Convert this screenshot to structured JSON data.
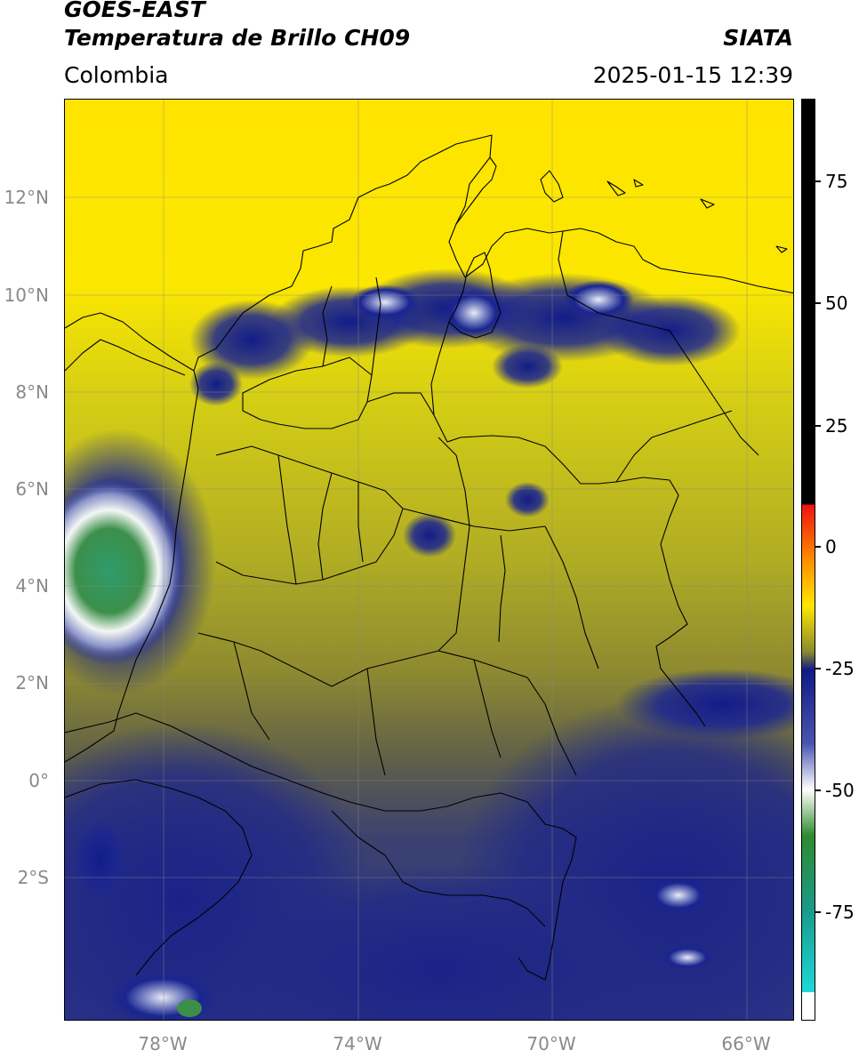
{
  "header": {
    "satellite": "GOES-EAST",
    "product": "Temperatura de Brillo CH09",
    "organization": "SIATA",
    "region": "Colombia",
    "timestamp": "2025-01-15 12:39"
  },
  "map": {
    "lat_ticks": [
      "12°N",
      "10°N",
      "8°N",
      "6°N",
      "4°N",
      "2°N",
      "0°",
      "2°S"
    ],
    "lon_ticks": [
      "78°W",
      "74°W",
      "70°W",
      "66°W"
    ],
    "extent": {
      "lon_min": -80,
      "lon_max": -65,
      "lat_min": -5,
      "lat_max": 14
    },
    "gridlines": true
  },
  "colorbar": {
    "ticks": [
      "75",
      "50",
      "25",
      "0",
      "-25",
      "-50",
      "-75"
    ],
    "colors": {
      "warm_black": "#000000",
      "red": "#ee1111",
      "orange": "#ff8c00",
      "yellow": "#ffe600",
      "olive": "#8a8a2c",
      "navy": "#101a85",
      "white": "#ffffff",
      "green": "#2f8a2f",
      "cyan": "#1ed8d8"
    }
  }
}
